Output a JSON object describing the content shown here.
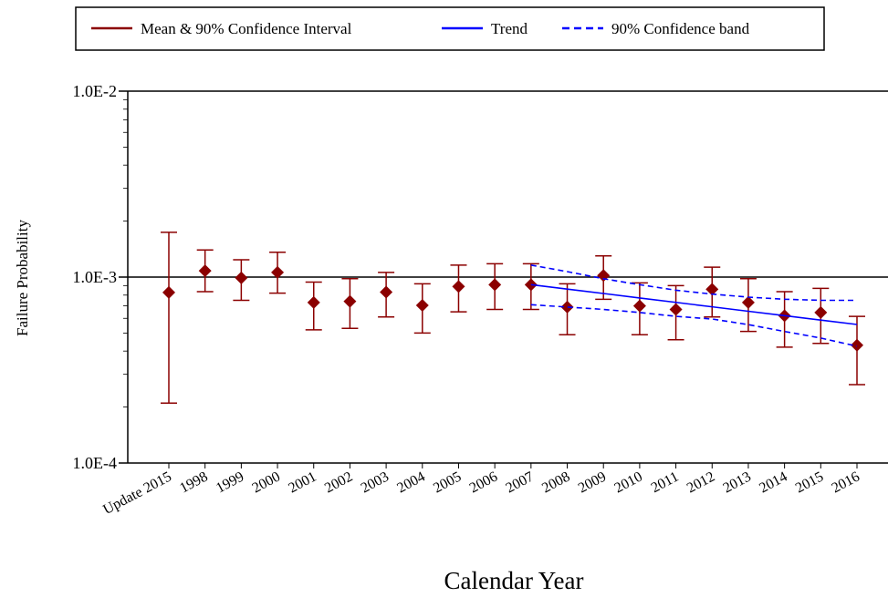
{
  "chart_data": {
    "type": "errorbar",
    "x_label": "Calendar Year",
    "y_label": "Failure Probability",
    "log_y": true,
    "grid": true,
    "legend_position": "top",
    "categories": [
      "Update 2015",
      "1998",
      "1999",
      "2000",
      "2001",
      "2002",
      "2003",
      "2004",
      "2005",
      "2006",
      "2007",
      "2008",
      "2009",
      "2010",
      "2011",
      "2012",
      "2013",
      "2014",
      "2015",
      "2016"
    ],
    "ylim": [
      0.0001,
      0.01
    ],
    "yticks": [
      {
        "value": 0.0001,
        "label": "1.0E-4"
      },
      {
        "value": 0.001,
        "label": "1.0E-3"
      },
      {
        "value": 0.01,
        "label": "1.0E-2"
      }
    ],
    "series": [
      {
        "name": "Mean & 90% Confidence Interval",
        "color": "#8b0000",
        "values": [
          0.000826,
          0.00108,
          0.00099,
          0.00106,
          0.00073,
          0.00074,
          0.00083,
          0.000705,
          0.00089,
          0.00091,
          0.00091,
          0.00069,
          0.00102,
          0.0007,
          0.00067,
          0.00086,
          0.00073,
          0.00062,
          0.000645,
          0.00043
        ],
        "lower": [
          0.00021,
          0.000835,
          0.00075,
          0.00082,
          0.00052,
          0.00053,
          0.00061,
          0.0005,
          0.00065,
          0.00067,
          0.00067,
          0.00049,
          0.00076,
          0.00049,
          0.00046,
          0.00061,
          0.00051,
          0.00042,
          0.00044,
          0.000264
        ],
        "upper": [
          0.00174,
          0.0014,
          0.00124,
          0.00136,
          0.00094,
          0.00098,
          0.00106,
          0.00092,
          0.00116,
          0.00118,
          0.00118,
          0.00092,
          0.0013,
          0.00093,
          0.0009,
          0.00113,
          0.00098,
          0.000835,
          0.00087,
          0.000615
        ]
      },
      {
        "name": "Trend",
        "color": "#0000ff",
        "style": "solid",
        "values": [
          null,
          null,
          null,
          null,
          null,
          null,
          null,
          null,
          null,
          null,
          0.00091,
          0.000862,
          0.000816,
          0.000772,
          0.000731,
          0.000692,
          0.000655,
          0.00062,
          0.000587,
          0.000556
        ]
      },
      {
        "name": "90% Confidence band",
        "color": "#0000ff",
        "style": "dashed",
        "upper": [
          null,
          null,
          null,
          null,
          null,
          null,
          null,
          null,
          null,
          null,
          0.00116,
          0.00107,
          0.00098,
          0.00091,
          0.00085,
          0.00081,
          0.00078,
          0.00076,
          0.00075,
          0.00075
        ],
        "lower": [
          null,
          null,
          null,
          null,
          null,
          null,
          null,
          null,
          null,
          null,
          0.00071,
          0.00069,
          0.00067,
          0.000645,
          0.000615,
          0.000595,
          0.000555,
          0.00051,
          0.00047,
          0.000425
        ]
      }
    ]
  }
}
